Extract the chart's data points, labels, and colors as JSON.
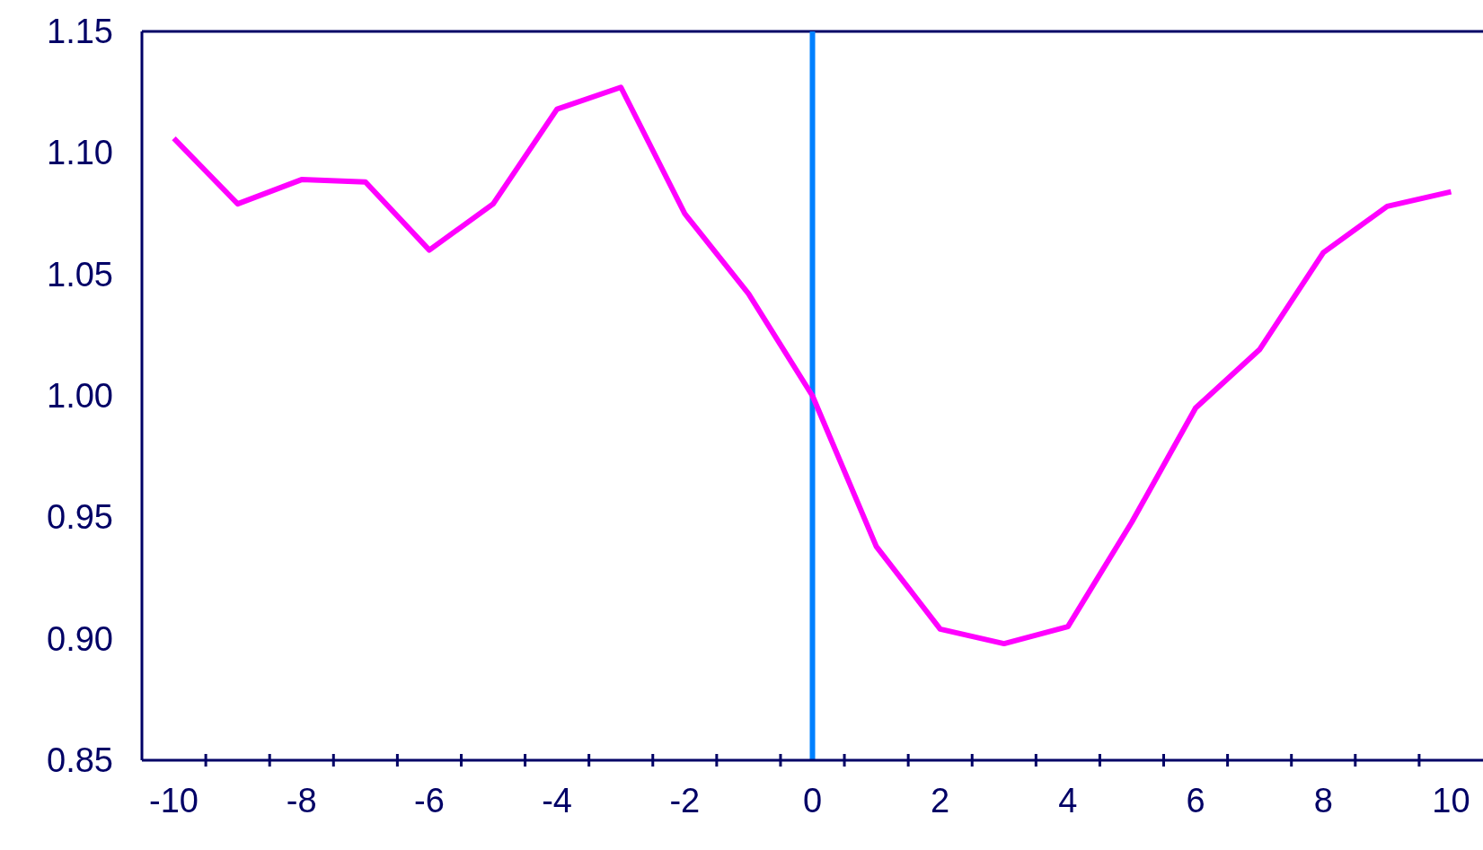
{
  "chart_data": {
    "type": "line",
    "x": [
      -10,
      -9,
      -8,
      -7,
      -6,
      -5,
      -4,
      -3,
      -2,
      -1,
      0,
      1,
      2,
      3,
      4,
      5,
      6,
      7,
      8,
      9,
      10
    ],
    "series": [
      {
        "color": "#ff00ff",
        "values": [
          1.106,
          1.079,
          1.089,
          1.088,
          1.06,
          1.079,
          1.118,
          1.127,
          1.075,
          1.042,
          1.0,
          0.938,
          0.904,
          0.898,
          0.905,
          0.948,
          0.995,
          1.019,
          1.059,
          1.078,
          1.084
        ]
      }
    ],
    "xlim": [
      -10.5,
      10.5
    ],
    "xticks": [
      -10,
      {
        "value": -9.5,
        "label": null
      },
      -8,
      {
        "value": -8.5,
        "label": null
      },
      {
        "value": -7.5,
        "label": null
      },
      -6,
      {
        "value": -6.5,
        "label": null
      },
      {
        "value": -5.5,
        "label": null
      },
      -4,
      {
        "value": -4.5,
        "label": null
      },
      {
        "value": -3.5,
        "label": null
      },
      -2,
      {
        "value": -2.5,
        "label": null
      },
      {
        "value": -1.5,
        "label": null
      },
      0,
      {
        "value": -0.5,
        "label": null
      },
      {
        "value": 0.5,
        "label": null
      },
      2,
      {
        "value": 1.5,
        "label": null
      },
      {
        "value": 2.5,
        "label": null
      },
      4,
      {
        "value": 3.5,
        "label": null
      },
      {
        "value": 4.5,
        "label": null
      },
      6,
      {
        "value": 5.5,
        "label": null
      },
      {
        "value": 6.5,
        "label": null
      },
      8,
      {
        "value": 7.5,
        "label": null
      },
      {
        "value": 8.5,
        "label": null
      },
      10,
      {
        "value": 9.5,
        "label": null
      }
    ],
    "ylim": [
      0.85,
      1.15
    ],
    "yticks": [
      0.85,
      {
        "value": 0.9,
        "label": "0.90"
      },
      0.95,
      {
        "value": 1.0,
        "label": "1.00"
      },
      1.05,
      {
        "value": 1.1,
        "label": "1.10"
      },
      1.15
    ],
    "ref_lines": [
      {
        "axis": "x",
        "value": 0,
        "color": "#0080ff"
      }
    ],
    "grid": false,
    "legend": false,
    "marker": "none",
    "line_style": "solid"
  }
}
